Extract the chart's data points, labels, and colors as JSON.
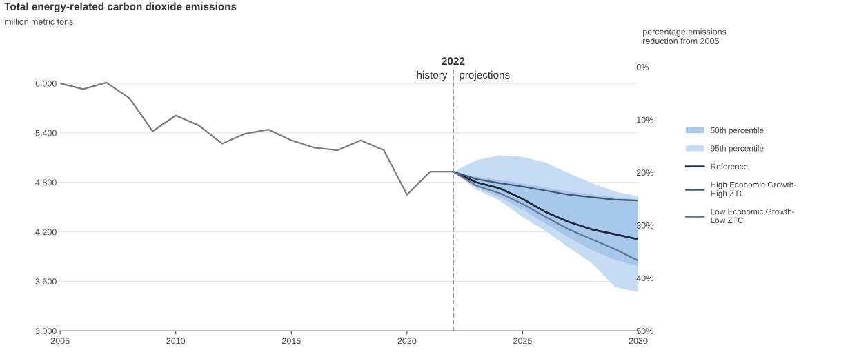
{
  "chart_data": {
    "type": "line",
    "title": "Total energy-related carbon dioxide emissions",
    "ylabel": "million metric tons",
    "y2label": "percentage emissions\nreduction from 2005",
    "xlim": [
      2005,
      2030
    ],
    "xticks": [
      2005,
      2010,
      2015,
      2020,
      2025,
      2030
    ],
    "ylim": [
      3000,
      6200
    ],
    "yticks": [
      {
        "value": 3000,
        "label": "3,000"
      },
      {
        "value": 3600,
        "label": "3,600"
      },
      {
        "value": 4200,
        "label": "4,200"
      },
      {
        "value": 4800,
        "label": "4,800"
      },
      {
        "value": 5400,
        "label": "5,400"
      },
      {
        "value": 6000,
        "label": "6,000"
      }
    ],
    "y2lim": [
      50,
      0
    ],
    "y2ticks": [
      {
        "value": 0,
        "label": "0%"
      },
      {
        "value": 10,
        "label": "10%"
      },
      {
        "value": 20,
        "label": "20%"
      },
      {
        "value": 30,
        "label": "30%"
      },
      {
        "value": 40,
        "label": "40%"
      },
      {
        "value": 50,
        "label": "50%"
      }
    ],
    "grid": "y",
    "legend": "right",
    "ref_lines": [
      {
        "axis": "x",
        "value": 2022,
        "label": "2022",
        "color": "#808080",
        "line_style": "dashed"
      }
    ],
    "annotations": [
      "history",
      "projections"
    ],
    "series": [
      {
        "type": "area",
        "name": "95th percentile",
        "color": "#c6dcf2",
        "x": [
          2022,
          2023,
          2024,
          2025,
          2026,
          2027,
          2028,
          2029,
          2030
        ],
        "values": [
          null,
          null,
          null,
          null,
          null,
          null,
          null,
          null,
          null
        ],
        "lower": [
          4930,
          4710,
          4580,
          4380,
          4210,
          4010,
          3820,
          3530,
          3470
        ],
        "upper": [
          4930,
          5070,
          5130,
          5110,
          5040,
          4910,
          4790,
          4690,
          4630
        ]
      },
      {
        "type": "area",
        "name": "50th percentile",
        "color": "#a7c8ea",
        "x": [
          2022,
          2023,
          2024,
          2025,
          2026,
          2027,
          2028,
          2029,
          2030
        ],
        "values": [
          null,
          null,
          null,
          null,
          null,
          null,
          null,
          null,
          null
        ],
        "lower": [
          4930,
          4740,
          4620,
          4470,
          4300,
          4130,
          3980,
          3860,
          3780
        ],
        "upper": [
          4930,
          4870,
          4830,
          4790,
          4740,
          4690,
          4650,
          4620,
          4590
        ]
      },
      {
        "color": "#7a7a7a",
        "x": [
          2005,
          2006,
          2007,
          2008,
          2009,
          2010,
          2011,
          2012,
          2013,
          2014,
          2015,
          2016,
          2017,
          2018,
          2019,
          2020,
          2021,
          2022
        ],
        "values": [
          6000,
          5930,
          6010,
          5820,
          5420,
          5610,
          5490,
          5270,
          5390,
          5440,
          5310,
          5220,
          5190,
          5310,
          5190,
          4650,
          4930,
          4930
        ]
      },
      {
        "name": "Reference",
        "color": "#1b2838",
        "x": [
          2022,
          2023,
          2024,
          2025,
          2026,
          2027,
          2028,
          2029,
          2030
        ],
        "values": [
          4930,
          4800,
          4730,
          4600,
          4440,
          4320,
          4230,
          4170,
          4110
        ]
      },
      {
        "name": "High Economic Growth-\nHigh ZTC",
        "color": "#3f5570",
        "x": [
          2022,
          2023,
          2024,
          2025,
          2026,
          2027,
          2028,
          2029,
          2030
        ],
        "values": [
          4930,
          4840,
          4790,
          4750,
          4700,
          4650,
          4620,
          4590,
          4580
        ]
      },
      {
        "name": "Low Economic Growth-\nLow ZTC",
        "color": "#5f7590",
        "x": [
          2022,
          2023,
          2024,
          2025,
          2026,
          2027,
          2028,
          2029,
          2030
        ],
        "values": [
          4930,
          4760,
          4670,
          4540,
          4380,
          4230,
          4110,
          3990,
          3850
        ]
      }
    ]
  }
}
